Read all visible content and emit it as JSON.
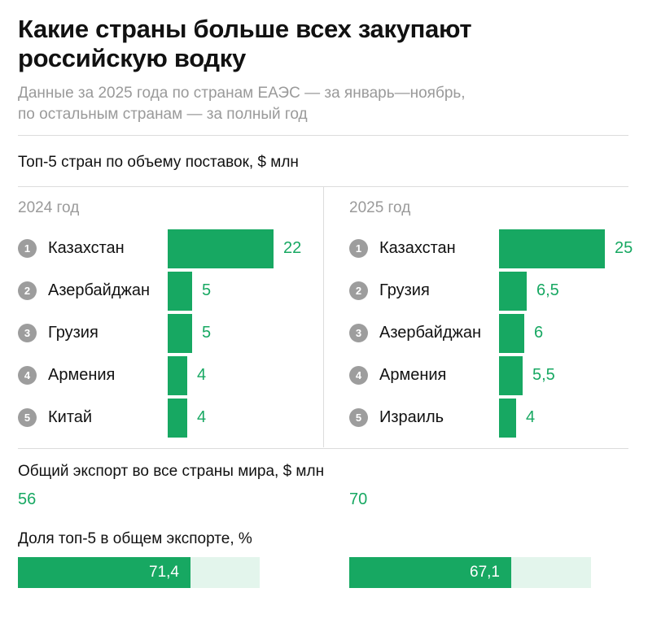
{
  "title": "Какие страны больше всех закупают российскую водку",
  "subtitle_line1": "Данные за 2025 года по странам ЕАЭС — за январь—ноябрь,",
  "subtitle_line2": "по остальным странам — за полный год",
  "top5_title": "Топ-5 стран по объему поставок, $ млн",
  "total_title": "Общий экспорт во все страны мира, $ млн",
  "share_title": "Доля топ-5 в общем экспорте, %",
  "colors": {
    "bar": "#17a862",
    "share_track": "#e3f5ec",
    "rank_circle": "#9d9d9d"
  },
  "chart_data": [
    {
      "type": "bar",
      "orientation": "horizontal",
      "title": "2024 год",
      "xlim": [
        0,
        22
      ],
      "rows": [
        {
          "rank": "1",
          "country": "Казахстан",
          "value": 22,
          "label": "22"
        },
        {
          "rank": "2",
          "country": "Азербайджан",
          "value": 5,
          "label": "5"
        },
        {
          "rank": "3",
          "country": "Грузия",
          "value": 5,
          "label": "5"
        },
        {
          "rank": "4",
          "country": "Армения",
          "value": 4,
          "label": "4"
        },
        {
          "rank": "5",
          "country": "Китай",
          "value": 4,
          "label": "4"
        }
      ],
      "total_export": "56",
      "top5_share": 71.4,
      "top5_share_label": "71,4"
    },
    {
      "type": "bar",
      "orientation": "horizontal",
      "title": "2025 год",
      "xlim": [
        0,
        25
      ],
      "rows": [
        {
          "rank": "1",
          "country": "Казахстан",
          "value": 25,
          "label": "25"
        },
        {
          "rank": "2",
          "country": "Грузия",
          "value": 6.5,
          "label": "6,5"
        },
        {
          "rank": "3",
          "country": "Азербайджан",
          "value": 6,
          "label": "6"
        },
        {
          "rank": "4",
          "country": "Армения",
          "value": 5.5,
          "label": "5,5"
        },
        {
          "rank": "5",
          "country": "Израиль",
          "value": 4,
          "label": "4"
        }
      ],
      "total_export": "70",
      "top5_share": 67.1,
      "top5_share_label": "67,1"
    }
  ]
}
